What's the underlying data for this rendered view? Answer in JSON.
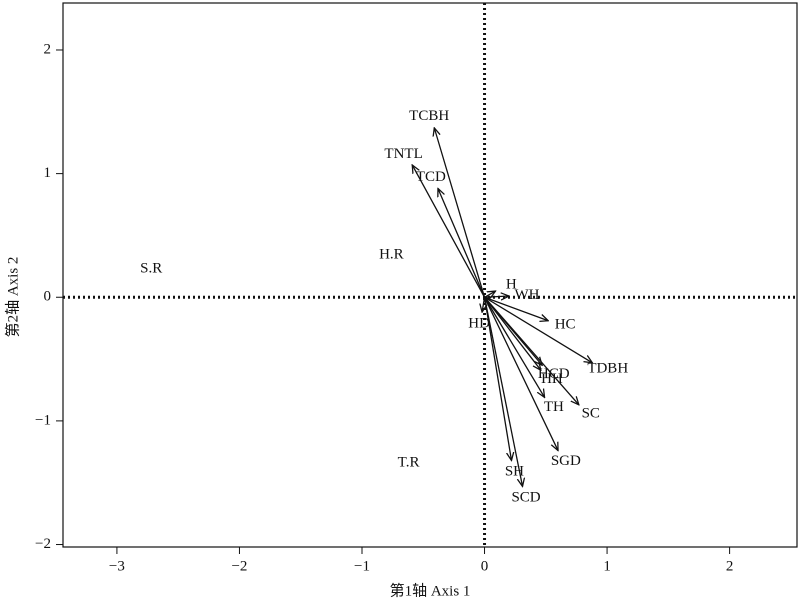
{
  "chart_data": {
    "type": "biplot",
    "x_label": "第1轴 Axis 1",
    "y_label": "第2轴 Axis 2",
    "xlim": [
      -3.44,
      2.55
    ],
    "ylim": [
      -2.02,
      2.38
    ],
    "xticks": [
      {
        "value": -3,
        "label": "−3"
      },
      {
        "value": -2,
        "label": "−2"
      },
      {
        "value": -1,
        "label": "−1"
      },
      0,
      1,
      2
    ],
    "yticks": [
      {
        "value": -2,
        "label": "−2"
      },
      {
        "value": -1,
        "label": "−1"
      },
      0,
      1,
      2
    ],
    "arrows": [
      {
        "name": "TCBH",
        "x": -0.41,
        "y": 1.37
      },
      {
        "name": "TNTL",
        "x": -0.59,
        "y": 1.07
      },
      {
        "name": "TCD",
        "x": -0.38,
        "y": 0.88
      },
      {
        "name": "H",
        "x": 0.09,
        "y": 0.05
      },
      {
        "name": "WH",
        "x": 0.2,
        "y": 0.01
      },
      {
        "name": "HD",
        "x": -0.02,
        "y": -0.12
      },
      {
        "name": "HC",
        "x": 0.52,
        "y": -0.19
      },
      {
        "name": "TDBH",
        "x": 0.88,
        "y": -0.53
      },
      {
        "name": "HCD",
        "x": 0.47,
        "y": -0.55
      },
      {
        "name": "HH",
        "x": 0.46,
        "y": -0.59
      },
      {
        "name": "TH",
        "x": 0.49,
        "y": -0.81
      },
      {
        "name": "SC",
        "x": 0.77,
        "y": -0.87
      },
      {
        "name": "SGD",
        "x": 0.6,
        "y": -1.24
      },
      {
        "name": "SH",
        "x": 0.22,
        "y": -1.32
      },
      {
        "name": "SCD",
        "x": 0.31,
        "y": -1.53
      }
    ],
    "points": [
      {
        "name": "S.R",
        "x": -2.72,
        "y": 0.23
      },
      {
        "name": "H.R",
        "x": -0.76,
        "y": 0.34
      },
      {
        "name": "T.R",
        "x": -0.62,
        "y": -1.34
      }
    ]
  }
}
